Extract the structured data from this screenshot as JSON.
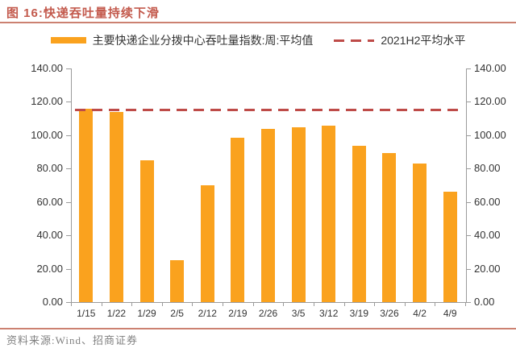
{
  "header": {
    "title": "图 16:快递吞吐量持续下滑"
  },
  "legend": {
    "bar_series": "主要快递企业分拨中心吞吐量指数:周:平均值",
    "avg_line": "2021H2平均水平"
  },
  "footer": {
    "source": "资料来源:Wind、招商证券"
  },
  "colors": {
    "bar": "#FAA21E",
    "avg_line": "#BE4B48",
    "title_text": "#C35A4D",
    "rule": "#CC8171",
    "axis_line": "#9B9B9B",
    "axis_text": "#333333",
    "legend_text": "#333333",
    "source_text": "#808080"
  },
  "chart_data": {
    "type": "bar",
    "title": "快递吞吐量持续下滑",
    "categories": [
      "1/15",
      "1/22",
      "1/29",
      "2/5",
      "2/12",
      "2/19",
      "2/26",
      "3/5",
      "3/12",
      "3/19",
      "3/26",
      "4/2",
      "4/9"
    ],
    "series": [
      {
        "name": "主要快递企业分拨中心吞吐量指数:周:平均值",
        "type": "bar",
        "values": [
          116,
          114,
          85,
          25,
          70,
          98.5,
          104,
          105,
          105.5,
          93.5,
          89.5,
          83,
          66
        ]
      },
      {
        "name": "2021H2平均水平",
        "type": "dashed-horizontal-line",
        "value": 115
      }
    ],
    "xlabel": "",
    "ylabel": "",
    "ylim": [
      0,
      140
    ],
    "ytick_step": 20,
    "ytick_labels": [
      "0.00",
      "20.00",
      "40.00",
      "60.00",
      "80.00",
      "100.00",
      "120.00",
      "140.00"
    ],
    "dual_y_axis": true,
    "grid": false,
    "legend_position": "top"
  }
}
